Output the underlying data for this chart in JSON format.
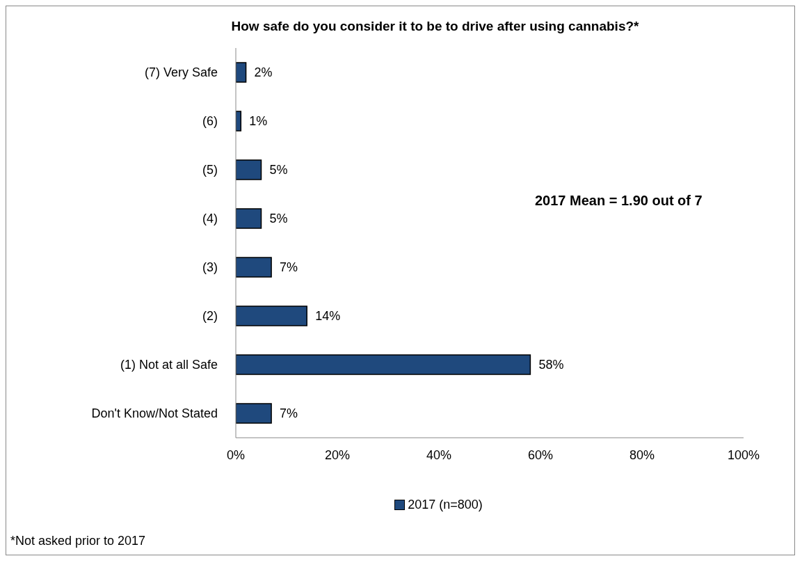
{
  "chart_data": {
    "type": "bar",
    "orientation": "horizontal",
    "title": "How safe do you consider it to be to drive after using cannabis?*",
    "categories": [
      "(7) Very Safe",
      "(6)",
      "(5)",
      "(4)",
      "(3)",
      "(2)",
      "(1) Not at all Safe",
      "Don't Know/Not Stated"
    ],
    "series": [
      {
        "name": "2017 (n=800)",
        "color": "#1f497d",
        "values": [
          2,
          1,
          5,
          5,
          7,
          14,
          58,
          7
        ],
        "value_labels": [
          "2%",
          "1%",
          "5%",
          "5%",
          "7%",
          "14%",
          "58%",
          "7%"
        ]
      }
    ],
    "xlim": [
      0,
      100
    ],
    "xticks": [
      {
        "value": 0,
        "label": "0%"
      },
      {
        "value": 20,
        "label": "20%"
      },
      {
        "value": 40,
        "label": "40%"
      },
      {
        "value": 60,
        "label": "60%"
      },
      {
        "value": 80,
        "label": "80%"
      },
      {
        "value": 100,
        "label": "100%"
      }
    ],
    "grid": false,
    "legend": "bottom",
    "annotations": [
      "2017 Mean = 1.90 out of 7",
      "*Not asked prior to 2017"
    ]
  }
}
